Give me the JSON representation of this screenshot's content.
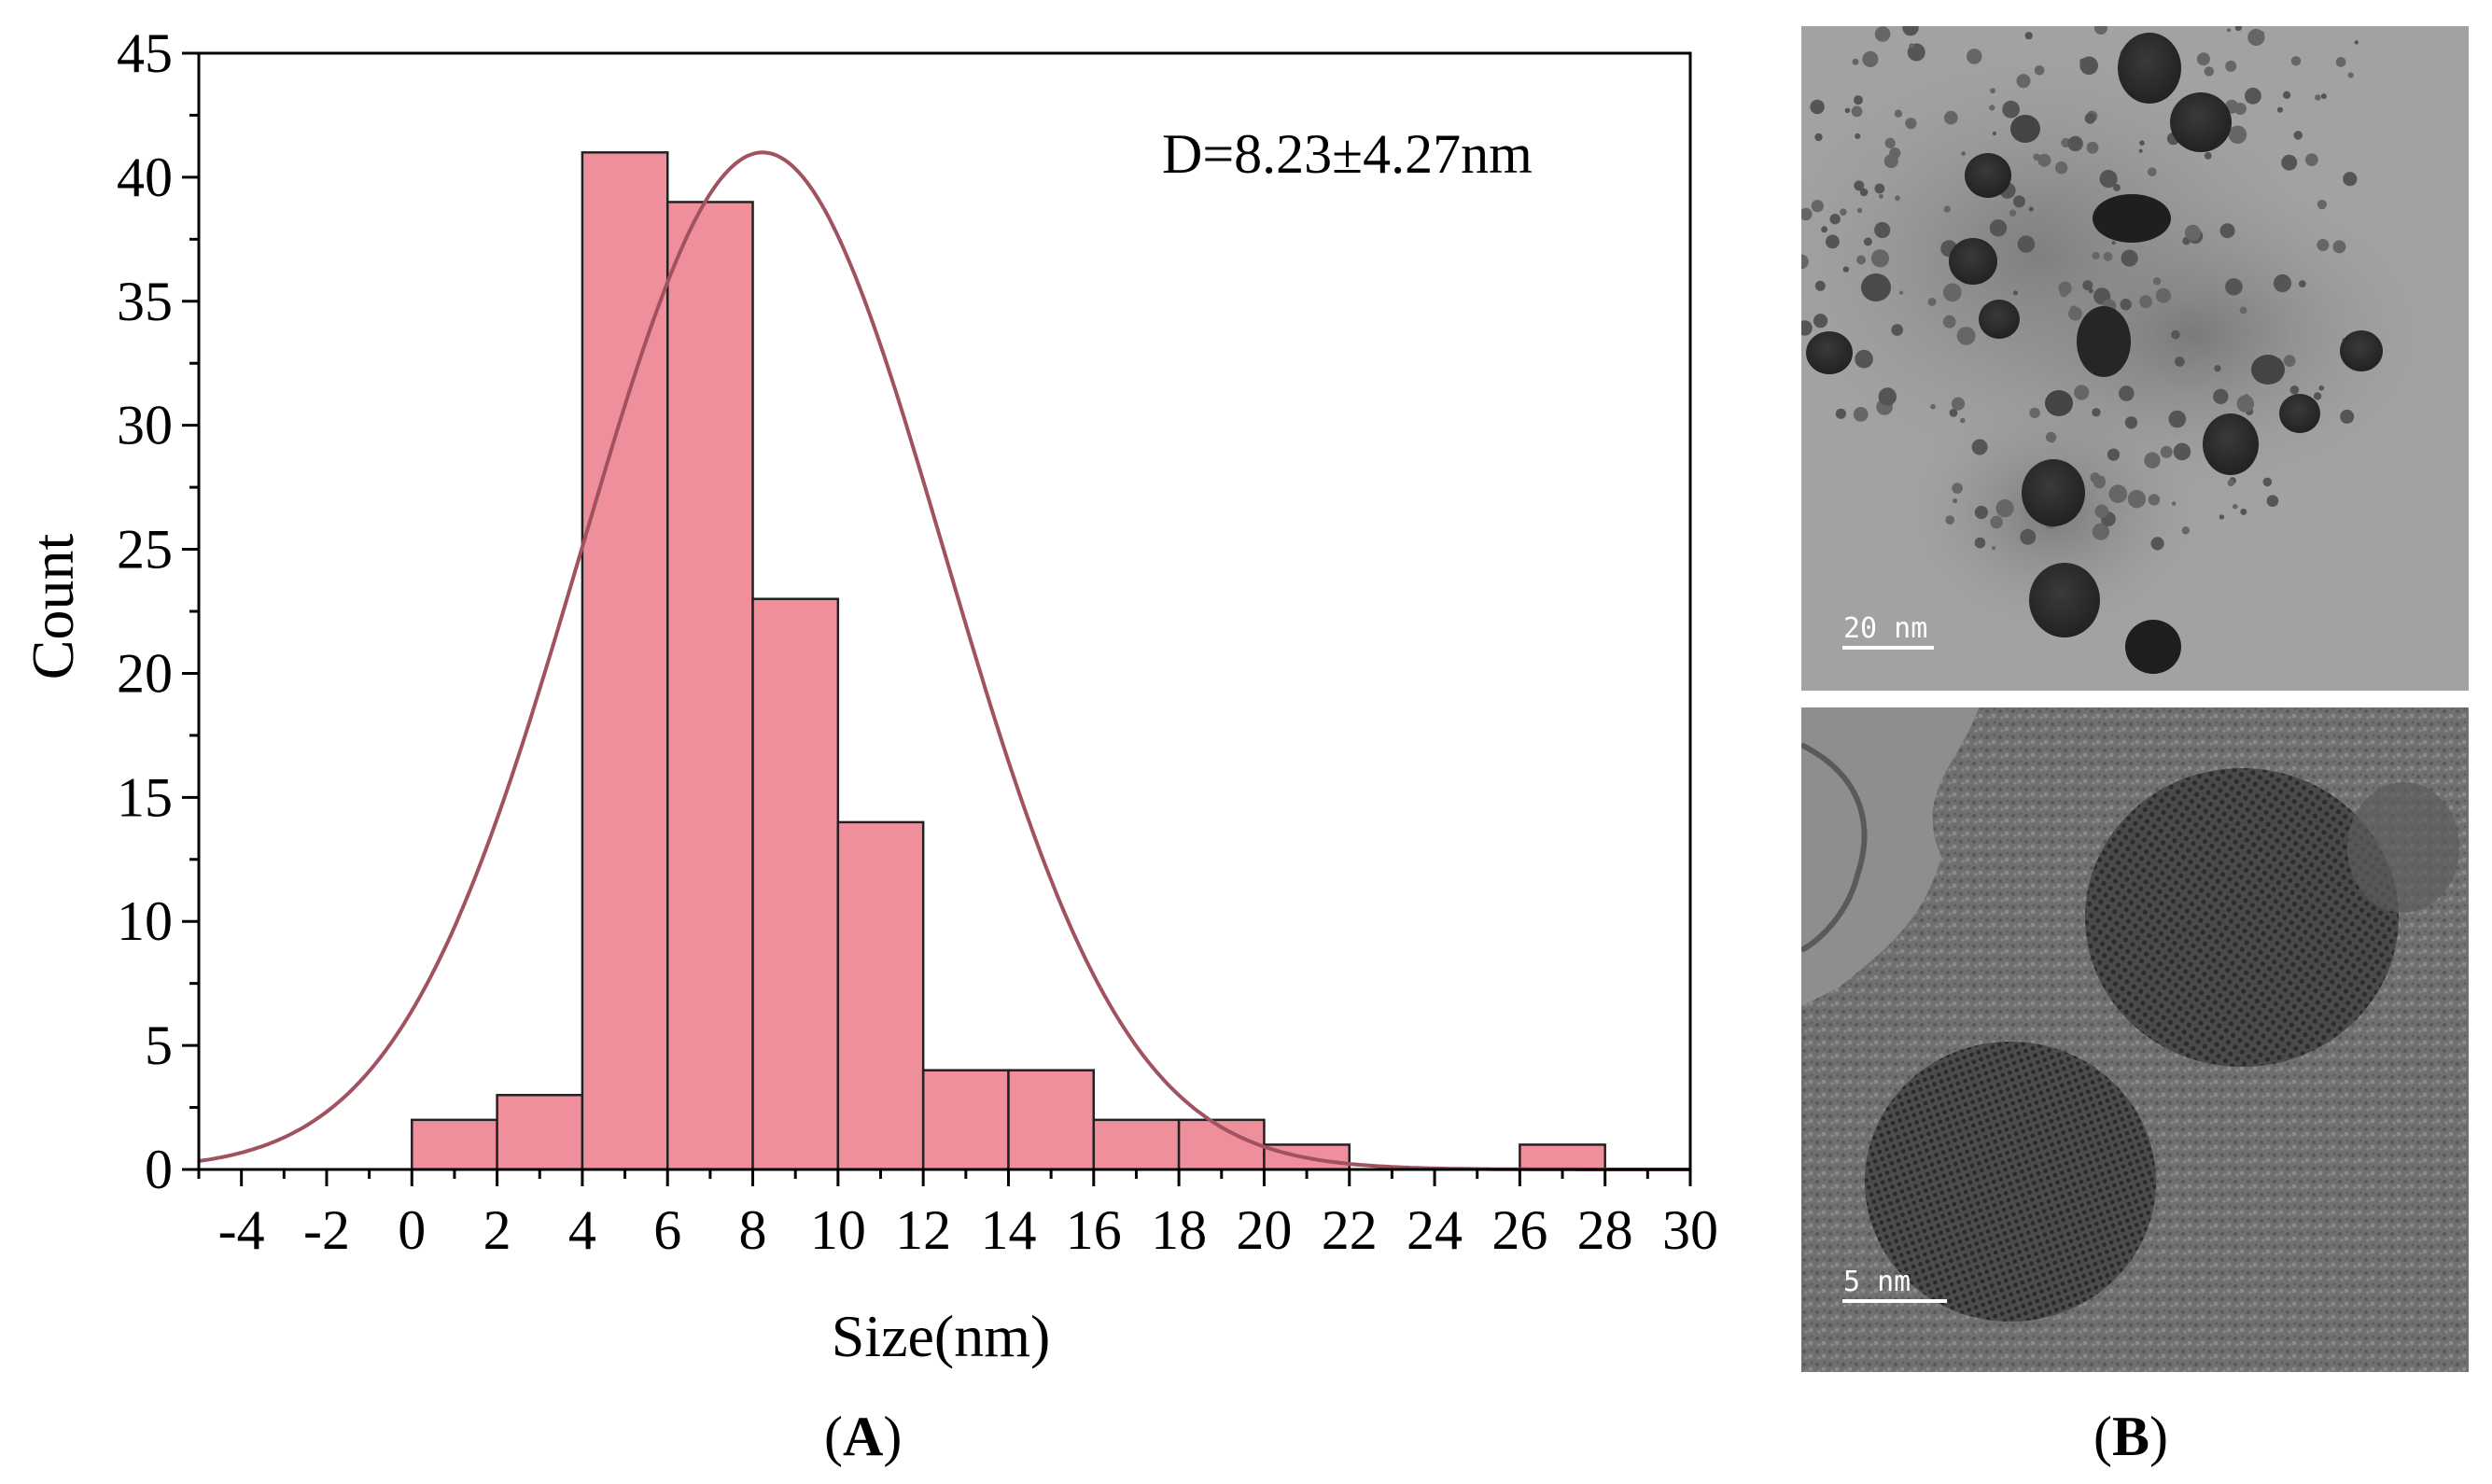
{
  "chart_data": {
    "type": "bar",
    "xlabel": "Size(nm)",
    "ylabel": "Count",
    "annotation": "D=8.23±4.27nm",
    "xlim": [
      -5,
      30
    ],
    "ylim": [
      0,
      45
    ],
    "x_ticks": [
      -4,
      -2,
      0,
      2,
      4,
      6,
      8,
      10,
      12,
      14,
      16,
      18,
      20,
      22,
      24,
      26,
      28,
      30
    ],
    "y_ticks": [
      0,
      5,
      10,
      15,
      20,
      25,
      30,
      35,
      40,
      45
    ],
    "bins": [
      {
        "start": 0,
        "end": 2,
        "count": 2
      },
      {
        "start": 2,
        "end": 4,
        "count": 3
      },
      {
        "start": 4,
        "end": 6,
        "count": 41
      },
      {
        "start": 6,
        "end": 8,
        "count": 39
      },
      {
        "start": 8,
        "end": 10,
        "count": 23
      },
      {
        "start": 10,
        "end": 12,
        "count": 14
      },
      {
        "start": 12,
        "end": 14,
        "count": 4
      },
      {
        "start": 14,
        "end": 16,
        "count": 4
      },
      {
        "start": 16,
        "end": 18,
        "count": 2
      },
      {
        "start": 18,
        "end": 20,
        "count": 2
      },
      {
        "start": 20,
        "end": 22,
        "count": 1
      },
      {
        "start": 26,
        "end": 28,
        "count": 1
      }
    ],
    "fit_curve": {
      "type": "gaussian",
      "mean": 8.23,
      "sd": 4.27,
      "peak": 41
    },
    "bar_color": "#ef8f9c",
    "curve_color": "#a0525f",
    "grid": false
  },
  "panels": {
    "a_label": {
      "open": "(",
      "letter": "A",
      "close": ")"
    },
    "b_label": {
      "open": "(",
      "letter": "B",
      "close": ")"
    },
    "tem_top_scale": "20 nm",
    "tem_bottom_scale": "5 nm"
  }
}
